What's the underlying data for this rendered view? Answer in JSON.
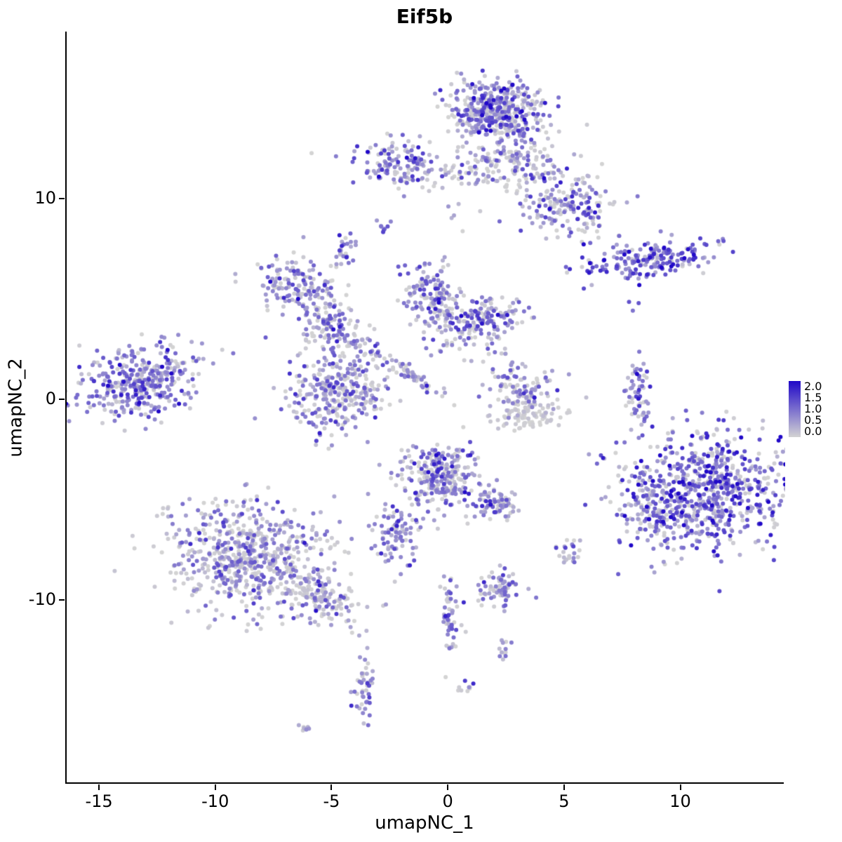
{
  "title": "Eif5b",
  "axes": {
    "x": {
      "label": "umapNC_1",
      "ticks": [
        -15,
        -10,
        -5,
        0,
        5,
        10
      ],
      "range": [
        -16.45,
        14.45
      ]
    },
    "y": {
      "label": "umapNC_2",
      "ticks": [
        -10,
        0,
        10
      ],
      "range": [
        -19.19,
        18.35
      ]
    }
  },
  "legend": {
    "labels": [
      "2.0",
      "1.5",
      "1.0",
      "0.5",
      "0.0"
    ],
    "min": 0,
    "max": 2,
    "low_color": "#d3d3d3",
    "high_color": "#2008c8"
  },
  "chart_data": {
    "type": "scatter",
    "title": "Eif5b",
    "xlabel": "umapNC_1",
    "ylabel": "umapNC_2",
    "xlim": [
      -16.45,
      14.45
    ],
    "ylim": [
      -19.19,
      18.35
    ],
    "grid": false,
    "legend_position": "right",
    "color_scale": {
      "min": 0,
      "max": 2,
      "low": "#d3d3d3",
      "high": "#2008c8"
    },
    "point_radius": 3,
    "seed": 20240901,
    "n_points_approx": 5000,
    "clusters": [
      {
        "cx": 2.0,
        "cy": 14.4,
        "rx": 0.95,
        "ry": 0.75,
        "rot": 0,
        "n": 420,
        "em": 0.75,
        "es": 0.6,
        "gf": 0.22
      },
      {
        "cx": 2.8,
        "cy": 12.0,
        "rx": 0.9,
        "ry": 0.7,
        "rot": 0,
        "n": 130,
        "em": 0.5,
        "es": 0.5,
        "gf": 0.3
      },
      {
        "cx": 4.9,
        "cy": 9.8,
        "rx": 1.05,
        "ry": 0.85,
        "rot": -30,
        "n": 200,
        "em": 0.7,
        "es": 0.55,
        "gf": 0.22
      },
      {
        "cx": -2.3,
        "cy": 11.7,
        "rx": 0.85,
        "ry": 0.6,
        "rot": 0,
        "n": 130,
        "em": 0.7,
        "es": 0.55,
        "gf": 0.2
      },
      {
        "cx": 0.6,
        "cy": 11.2,
        "rx": 1.3,
        "ry": 0.28,
        "rot": 0,
        "n": 55,
        "em": 0.45,
        "es": 0.45,
        "gf": 0.3
      },
      {
        "cx": -2.85,
        "cy": 8.75,
        "rx": 0.15,
        "ry": 0.2,
        "rot": 0,
        "n": 8,
        "em": 0.8,
        "es": 0.4,
        "gf": 0.1
      },
      {
        "cx": -4.6,
        "cy": 7.4,
        "rx": 0.25,
        "ry": 0.45,
        "rot": 0,
        "n": 26,
        "em": 0.8,
        "es": 0.5,
        "gf": 0.1
      },
      {
        "cx": 8.6,
        "cy": 7.0,
        "rx": 1.5,
        "ry": 0.42,
        "rot": 8,
        "n": 185,
        "em": 1.1,
        "es": 0.5,
        "gf": 0.08
      },
      {
        "cx": 8.0,
        "cy": 4.7,
        "rx": 0.12,
        "ry": 0.12,
        "rot": 0,
        "n": 3,
        "em": 0.9,
        "es": 0.3,
        "gf": 0
      },
      {
        "cx": -6.6,
        "cy": 5.6,
        "rx": 1.0,
        "ry": 0.7,
        "rot": -20,
        "n": 165,
        "em": 0.7,
        "es": 0.5,
        "gf": 0.2
      },
      {
        "cx": -4.7,
        "cy": 3.4,
        "rx": 0.8,
        "ry": 0.55,
        "rot": -35,
        "n": 115,
        "em": 0.6,
        "es": 0.5,
        "gf": 0.25
      },
      {
        "cx": -4.9,
        "cy": 0.4,
        "rx": 1.05,
        "ry": 1.0,
        "rot": 0,
        "n": 310,
        "em": 0.6,
        "es": 0.5,
        "gf": 0.25
      },
      {
        "cx": -0.7,
        "cy": 5.0,
        "rx": 0.6,
        "ry": 0.95,
        "rot": 15,
        "n": 165,
        "em": 0.65,
        "es": 0.5,
        "gf": 0.22
      },
      {
        "cx": 1.6,
        "cy": 4.05,
        "rx": 0.85,
        "ry": 0.5,
        "rot": 10,
        "n": 140,
        "em": 0.75,
        "es": 0.55,
        "gf": 0.18
      },
      {
        "cx": -1.8,
        "cy": 1.35,
        "rx": 0.95,
        "ry": 0.16,
        "rot": -38,
        "n": 60,
        "em": 0.55,
        "es": 0.5,
        "gf": 0.3
      },
      {
        "cx": 0.5,
        "cy": 2.8,
        "rx": 1.1,
        "ry": 0.5,
        "rot": 0,
        "n": 22,
        "em": 0.4,
        "es": 0.4,
        "gf": 0.4
      },
      {
        "cx": -13.2,
        "cy": 0.9,
        "rx": 1.25,
        "ry": 0.85,
        "rot": 20,
        "n": 380,
        "em": 0.8,
        "es": 0.5,
        "gf": 0.15
      },
      {
        "cx": 3.2,
        "cy": 0.6,
        "rx": 0.75,
        "ry": 0.6,
        "rot": 0,
        "n": 95,
        "em": 0.55,
        "es": 0.5,
        "gf": 0.3
      },
      {
        "cx": 3.5,
        "cy": -0.8,
        "rx": 0.8,
        "ry": 0.35,
        "rot": 10,
        "n": 95,
        "em": 0.12,
        "es": 0.18,
        "gf": 0.6
      },
      {
        "cx": 8.1,
        "cy": 0.3,
        "rx": 0.22,
        "ry": 0.95,
        "rot": 0,
        "n": 60,
        "em": 0.7,
        "es": 0.55,
        "gf": 0.2
      },
      {
        "cx": 10.9,
        "cy": -4.6,
        "rx": 1.75,
        "ry": 1.5,
        "rot": 0,
        "n": 720,
        "em": 0.95,
        "es": 0.6,
        "gf": 0.17
      },
      {
        "cx": 8.6,
        "cy": -5.8,
        "rx": 0.5,
        "ry": 1.0,
        "rot": 15,
        "n": 70,
        "em": 0.8,
        "es": 0.6,
        "gf": 0.2
      },
      {
        "cx": -0.4,
        "cy": -3.9,
        "rx": 0.9,
        "ry": 0.85,
        "rot": 0,
        "n": 260,
        "em": 0.7,
        "es": 0.55,
        "gf": 0.2
      },
      {
        "cx": 2.0,
        "cy": -5.2,
        "rx": 0.55,
        "ry": 0.42,
        "rot": 0,
        "n": 75,
        "em": 0.7,
        "es": 0.5,
        "gf": 0.2
      },
      {
        "cx": -8.6,
        "cy": -7.9,
        "rx": 1.75,
        "ry": 1.35,
        "rot": -15,
        "n": 640,
        "em": 0.55,
        "es": 0.5,
        "gf": 0.28
      },
      {
        "cx": -5.5,
        "cy": -9.9,
        "rx": 0.95,
        "ry": 0.5,
        "rot": -28,
        "n": 130,
        "em": 0.5,
        "es": 0.5,
        "gf": 0.3
      },
      {
        "cx": -2.3,
        "cy": -6.8,
        "rx": 0.45,
        "ry": 0.8,
        "rot": 0,
        "n": 90,
        "em": 0.7,
        "es": 0.5,
        "gf": 0.18
      },
      {
        "cx": 2.2,
        "cy": -9.4,
        "rx": 0.45,
        "ry": 0.5,
        "rot": 0,
        "n": 70,
        "em": 0.65,
        "es": 0.5,
        "gf": 0.2
      },
      {
        "cx": 0.1,
        "cy": -10.9,
        "rx": 0.22,
        "ry": 1.05,
        "rot": 0,
        "n": 55,
        "em": 0.75,
        "es": 0.5,
        "gf": 0.15
      },
      {
        "cx": 5.1,
        "cy": -7.6,
        "rx": 0.28,
        "ry": 0.38,
        "rot": 0,
        "n": 24,
        "em": 0.5,
        "es": 0.45,
        "gf": 0.3
      },
      {
        "cx": 2.3,
        "cy": -12.4,
        "rx": 0.22,
        "ry": 0.25,
        "rot": 0,
        "n": 12,
        "em": 0.6,
        "es": 0.4,
        "gf": 0.2
      },
      {
        "cx": 0.75,
        "cy": -14.3,
        "rx": 0.18,
        "ry": 0.25,
        "rot": 0,
        "n": 9,
        "em": 0.7,
        "es": 0.7,
        "gf": 0.2
      },
      {
        "cx": -3.6,
        "cy": -14.6,
        "rx": 0.22,
        "ry": 0.85,
        "rot": 0,
        "n": 45,
        "em": 0.7,
        "es": 0.5,
        "gf": 0.15
      },
      {
        "cx": -6.1,
        "cy": -16.4,
        "rx": 0.18,
        "ry": 0.15,
        "rot": 0,
        "n": 8,
        "em": 0.5,
        "es": 0.4,
        "gf": 0.3
      },
      {
        "cx": 0.4,
        "cy": 9.2,
        "rx": 0.2,
        "ry": 0.5,
        "rot": 0,
        "n": 5,
        "em": 0.6,
        "es": 0.4,
        "gf": 0.3
      },
      {
        "cx": 2.4,
        "cy": 2.3,
        "rx": 0.3,
        "ry": 0.4,
        "rot": 0,
        "n": 7,
        "em": 0.5,
        "es": 0.4,
        "gf": 0.3
      }
    ]
  }
}
